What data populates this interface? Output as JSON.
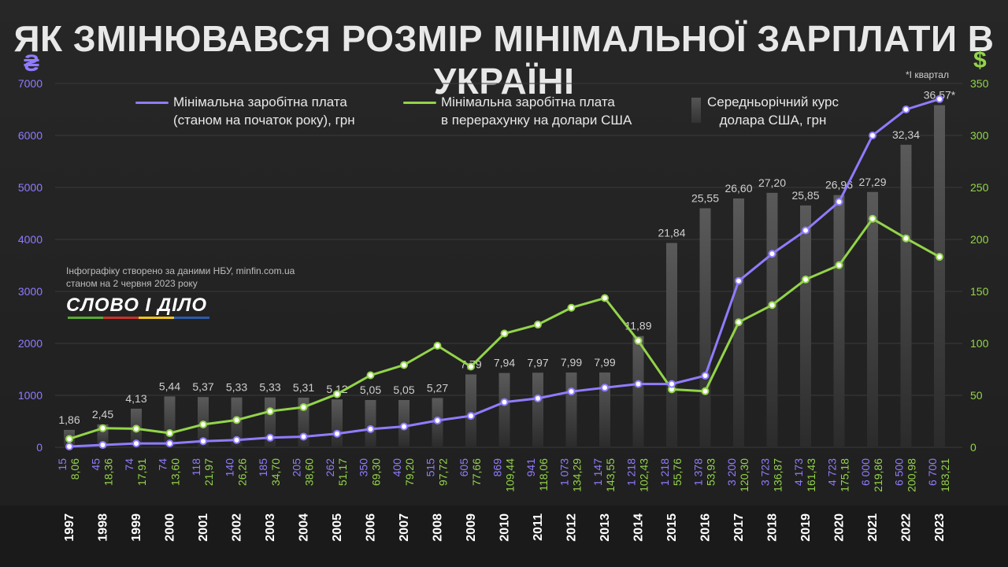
{
  "title": "ЯК ЗМІНЮВАВСЯ РОЗМІР МІНІМАЛЬНОЇ ЗАРПЛАТИ В УКРАЇНІ",
  "currency_left": "₴",
  "currency_right": "$",
  "footnote": "*І квартал",
  "legend": {
    "purple": [
      "Мінімальна заробітна плата",
      "(станом на початок року), грн"
    ],
    "green": [
      "Мінімальна заробітна плата",
      "в перерахунку на долари США"
    ],
    "bars": [
      "Середньорічний курс",
      "долара США, грн"
    ]
  },
  "source": [
    "Інфографіку створено за даними НБУ, minfin.com.ua",
    "станом на 2 червня 2023 року"
  ],
  "logo": "СЛОВО І ДІЛО",
  "colors": {
    "purple": "#8f7cff",
    "green": "#93d44a",
    "bar": "#4a4a4a",
    "background": "#252525"
  },
  "chart_data": {
    "type": "line",
    "categories": [
      "1997",
      "1998",
      "1999",
      "2000",
      "2001",
      "2002",
      "2003",
      "2004",
      "2005",
      "2006",
      "2007",
      "2008",
      "2009",
      "2010",
      "2011",
      "2012",
      "2013",
      "2014",
      "2015",
      "2016",
      "2017",
      "2018",
      "2019",
      "2020",
      "2021",
      "2022",
      "2023"
    ],
    "left_axis": {
      "ylim": [
        0,
        7000
      ],
      "ticks": [
        0,
        1000,
        2000,
        3000,
        4000,
        5000,
        6000,
        7000
      ]
    },
    "right_axis": {
      "ylim": [
        0,
        350
      ],
      "ticks": [
        0,
        50,
        100,
        150,
        200,
        250,
        300,
        350
      ]
    },
    "series": [
      {
        "name": "Мінімальна заробітна плата (станом на початок року), грн",
        "axis": "left",
        "values": [
          15,
          45,
          74,
          74,
          118,
          140,
          185,
          205,
          262,
          350,
          400,
          515,
          605,
          869,
          941,
          1073,
          1147,
          1218,
          1218,
          1378,
          3200,
          3723,
          4173,
          4723,
          6000,
          6500,
          6700
        ],
        "labels": [
          "15",
          "45",
          "74",
          "74",
          "118",
          "140",
          "185",
          "205",
          "262",
          "350",
          "400",
          "515",
          "605",
          "869",
          "941",
          "1 073",
          "1 147",
          "1 218",
          "1 218",
          "1 378",
          "3 200",
          "3 723",
          "4 173",
          "4 723",
          "6 000",
          "6 500",
          "6 700"
        ]
      },
      {
        "name": "Мінімальна заробітна плата в перерахунку на долари США",
        "axis": "right",
        "values": [
          8.06,
          18.36,
          17.91,
          13.6,
          21.97,
          26.26,
          34.7,
          38.6,
          51.17,
          69.3,
          79.2,
          97.72,
          77.66,
          109.44,
          118.06,
          134.29,
          143.55,
          102.43,
          55.76,
          53.93,
          120.3,
          136.87,
          161.43,
          175.18,
          219.86,
          200.98,
          183.21
        ],
        "labels": [
          "8,06",
          "18,36",
          "17,91",
          "13,60",
          "21,97",
          "26,26",
          "34,70",
          "38,60",
          "51,17",
          "69,30",
          "79,20",
          "97,72",
          "77,66",
          "109,44",
          "118,06",
          "134,29",
          "143,55",
          "102,43",
          "55,76",
          "53,93",
          "120,30",
          "136,87",
          "161,43",
          "175,18",
          "219,86",
          "200,98",
          "183,21"
        ]
      },
      {
        "name": "Середньорічний курс долара США, грн",
        "axis": "right",
        "kind": "bar",
        "values": [
          1.86,
          2.45,
          4.13,
          5.44,
          5.37,
          5.33,
          5.33,
          5.31,
          5.12,
          5.05,
          5.05,
          5.27,
          7.79,
          7.94,
          7.97,
          7.99,
          7.99,
          11.89,
          21.84,
          25.55,
          26.6,
          27.2,
          25.85,
          26.96,
          27.29,
          32.34,
          36.57
        ],
        "labels": [
          "1,86",
          "2,45",
          "4,13",
          "5,44",
          "5,37",
          "5,33",
          "5,33",
          "5,31",
          "5,12",
          "5,05",
          "5,05",
          "5,27",
          "7,79",
          "7,94",
          "7,97",
          "7,99",
          "7,99",
          "11,89",
          "21,84",
          "25,55",
          "26,60",
          "27,20",
          "25,85",
          "26,96",
          "27,29",
          "32,34",
          "36,57*"
        ]
      }
    ]
  }
}
